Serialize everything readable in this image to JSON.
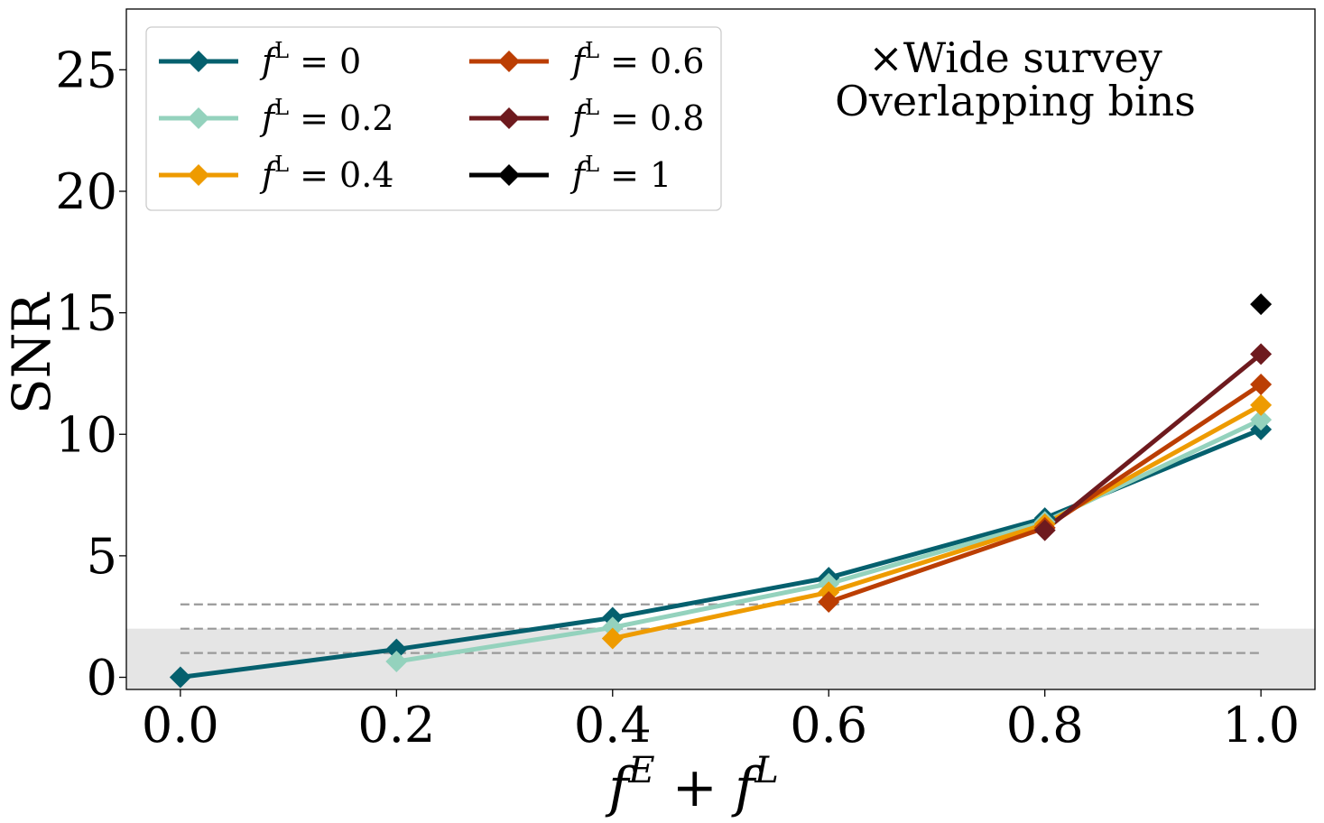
{
  "chart_data": {
    "type": "line",
    "xlabel": "f^E + f^L",
    "ylabel": "SNR",
    "xlim": [
      -0.05,
      1.05
    ],
    "ylim": [
      -0.5,
      27.5
    ],
    "xticks": [
      0.0,
      0.2,
      0.4,
      0.6,
      0.8,
      1.0
    ],
    "xtick_labels": [
      "0.0",
      "0.2",
      "0.4",
      "0.6",
      "0.8",
      "1.0"
    ],
    "yticks": [
      0,
      5,
      10,
      15,
      20,
      25
    ],
    "ytick_labels": [
      "0",
      "5",
      "10",
      "15",
      "20",
      "25"
    ],
    "grid": false,
    "legend_position": "top-left",
    "annotation": [
      "×Wide survey",
      "Overlapping bins"
    ],
    "shaded_band": {
      "y0": -0.5,
      "y1": 2.0,
      "color": "#e5e5e5"
    },
    "reference_lines": [
      {
        "y": 3.0,
        "color": "#999999",
        "style": "dashed"
      },
      {
        "y": 2.0,
        "color": "#999999",
        "style": "dashed"
      },
      {
        "y": 1.0,
        "color": "#999999",
        "style": "dashed"
      }
    ],
    "series": [
      {
        "name": "f^L = 0",
        "color": "#05606e",
        "x": [
          0.0,
          0.2,
          0.4,
          0.6,
          0.8,
          1.0
        ],
        "y": [
          0.0,
          1.15,
          2.45,
          4.1,
          6.55,
          10.2
        ]
      },
      {
        "name": "f^L = 0.2",
        "color": "#94d2bd",
        "x": [
          0.2,
          0.4,
          0.6,
          0.8,
          1.0
        ],
        "y": [
          0.65,
          2.05,
          3.85,
          6.4,
          10.6
        ]
      },
      {
        "name": "f^L = 0.4",
        "color": "#ee9b00",
        "x": [
          0.4,
          0.6,
          0.8,
          1.0
        ],
        "y": [
          1.6,
          3.5,
          6.3,
          11.2
        ]
      },
      {
        "name": "f^L = 0.6",
        "color": "#bb3e03",
        "x": [
          0.6,
          0.8,
          1.0
        ],
        "y": [
          3.1,
          6.15,
          12.05
        ]
      },
      {
        "name": "f^L = 0.8",
        "color": "#6e1a1e",
        "x": [
          0.8,
          1.0
        ],
        "y": [
          6.05,
          13.3
        ]
      },
      {
        "name": "f^L = 1",
        "color": "#000000",
        "x": [
          1.0
        ],
        "y": [
          15.35
        ]
      }
    ]
  }
}
